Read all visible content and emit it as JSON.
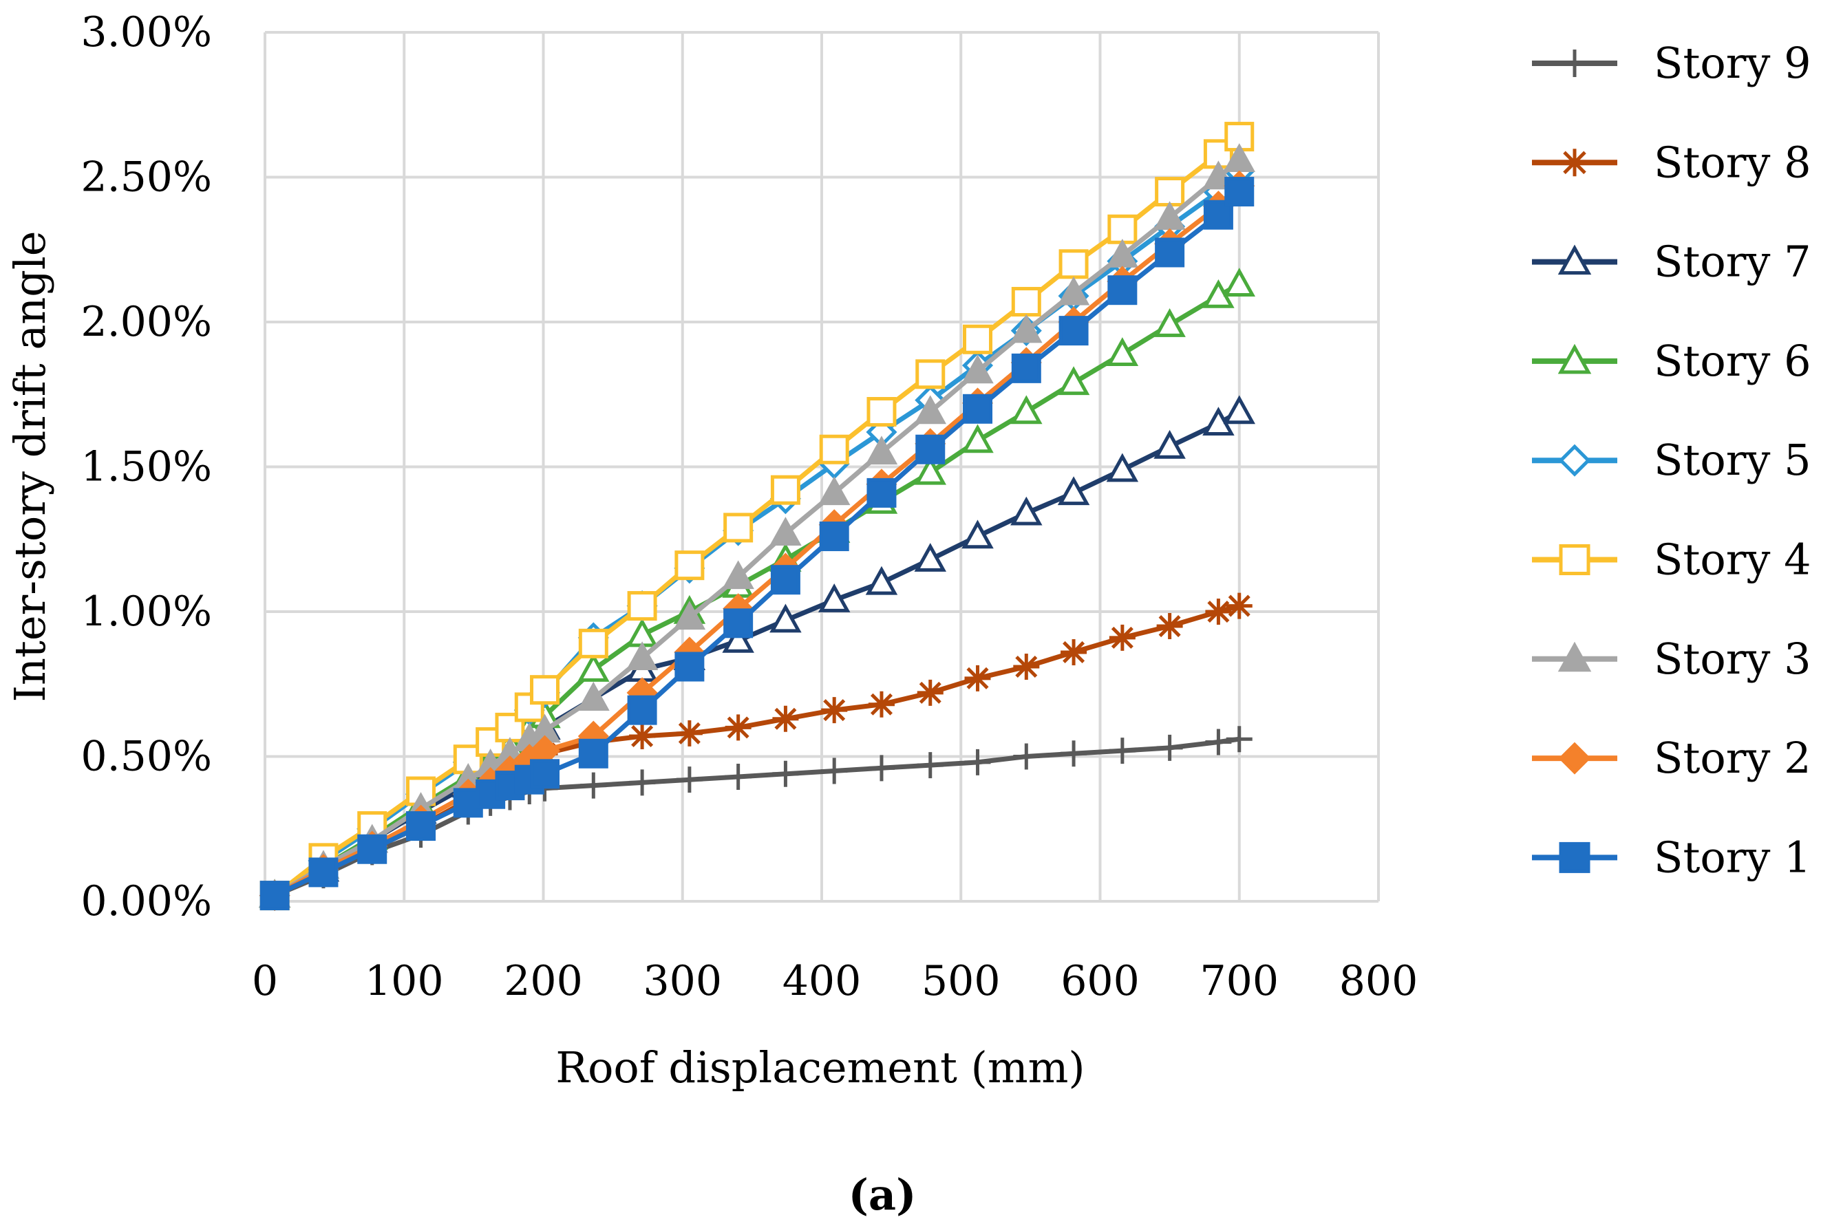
{
  "chart_data": {
    "type": "line",
    "title": "",
    "caption": "(a)",
    "xlabel": "Roof displacement (mm)",
    "ylabel": "Inter-story drift angle",
    "xlim": [
      0,
      800
    ],
    "ylim": [
      0,
      3.0
    ],
    "x_ticks": [
      "0",
      "100",
      "200",
      "300",
      "400",
      "500",
      "600",
      "700",
      "800"
    ],
    "y_ticks": [
      "0.00%",
      "0.50%",
      "1.00%",
      "1.50%",
      "2.00%",
      "2.50%",
      "3.00%"
    ],
    "grid": true,
    "legend_position": "right",
    "x": [
      7,
      42,
      77,
      112,
      146,
      162,
      176,
      190,
      201,
      236,
      271,
      305,
      340,
      374,
      409,
      443,
      478,
      512,
      547,
      581,
      616,
      650,
      685,
      700
    ],
    "series": [
      {
        "name": "Story 9",
        "color": "#595959",
        "marker": "plus",
        "values": [
          0.02,
          0.09,
          0.17,
          0.23,
          0.31,
          0.34,
          0.36,
          0.38,
          0.39,
          0.4,
          0.41,
          0.42,
          0.43,
          0.44,
          0.45,
          0.46,
          0.47,
          0.48,
          0.5,
          0.51,
          0.52,
          0.53,
          0.55,
          0.56
        ]
      },
      {
        "name": "Story 8",
        "color": "#b54708",
        "marker": "star",
        "values": [
          0.02,
          0.1,
          0.18,
          0.26,
          0.35,
          0.4,
          0.44,
          0.48,
          0.51,
          0.55,
          0.57,
          0.58,
          0.6,
          0.63,
          0.66,
          0.68,
          0.72,
          0.77,
          0.81,
          0.86,
          0.91,
          0.95,
          1.0,
          1.02
        ]
      },
      {
        "name": "Story 7",
        "color": "#1f3d6b",
        "marker": "triangle-open",
        "values": [
          0.02,
          0.11,
          0.21,
          0.31,
          0.4,
          0.45,
          0.5,
          0.54,
          0.6,
          0.7,
          0.8,
          0.84,
          0.9,
          0.97,
          1.04,
          1.1,
          1.18,
          1.26,
          1.34,
          1.41,
          1.49,
          1.57,
          1.65,
          1.69
        ]
      },
      {
        "name": "Story 6",
        "color": "#4aab3c",
        "marker": "triangle-open",
        "values": [
          0.02,
          0.12,
          0.22,
          0.33,
          0.43,
          0.49,
          0.54,
          0.6,
          0.64,
          0.8,
          0.92,
          1.0,
          1.09,
          1.18,
          1.28,
          1.38,
          1.48,
          1.59,
          1.69,
          1.79,
          1.89,
          1.99,
          2.09,
          2.13
        ]
      },
      {
        "name": "Story 5",
        "color": "#2b97d6",
        "marker": "diamond-open",
        "values": [
          0.02,
          0.14,
          0.25,
          0.37,
          0.48,
          0.54,
          0.59,
          0.66,
          0.72,
          0.91,
          1.02,
          1.15,
          1.28,
          1.39,
          1.51,
          1.62,
          1.73,
          1.85,
          1.97,
          2.09,
          2.21,
          2.33,
          2.45,
          2.52
        ]
      },
      {
        "name": "Story 4",
        "color": "#fbc02d",
        "marker": "square-open",
        "values": [
          0.02,
          0.15,
          0.26,
          0.38,
          0.49,
          0.55,
          0.6,
          0.67,
          0.73,
          0.89,
          1.02,
          1.16,
          1.29,
          1.42,
          1.56,
          1.69,
          1.82,
          1.94,
          2.07,
          2.2,
          2.32,
          2.45,
          2.58,
          2.64
        ]
      },
      {
        "name": "Story 3",
        "color": "#a6a6a6",
        "marker": "triangle",
        "values": [
          0.02,
          0.12,
          0.21,
          0.32,
          0.42,
          0.47,
          0.51,
          0.56,
          0.59,
          0.7,
          0.84,
          0.98,
          1.12,
          1.27,
          1.41,
          1.55,
          1.69,
          1.83,
          1.97,
          2.1,
          2.23,
          2.36,
          2.5,
          2.56
        ]
      },
      {
        "name": "Story 2",
        "color": "#f4812b",
        "marker": "diamond",
        "values": [
          0.02,
          0.11,
          0.19,
          0.28,
          0.37,
          0.41,
          0.45,
          0.49,
          0.52,
          0.57,
          0.72,
          0.86,
          1.01,
          1.15,
          1.3,
          1.44,
          1.58,
          1.72,
          1.86,
          2.0,
          2.14,
          2.27,
          2.4,
          2.47
        ]
      },
      {
        "name": "Story 1",
        "color": "#1f6fc4",
        "marker": "square",
        "values": [
          0.02,
          0.1,
          0.18,
          0.26,
          0.34,
          0.37,
          0.4,
          0.42,
          0.44,
          0.51,
          0.66,
          0.81,
          0.96,
          1.11,
          1.26,
          1.41,
          1.56,
          1.7,
          1.84,
          1.97,
          2.11,
          2.24,
          2.37,
          2.45
        ]
      }
    ]
  }
}
